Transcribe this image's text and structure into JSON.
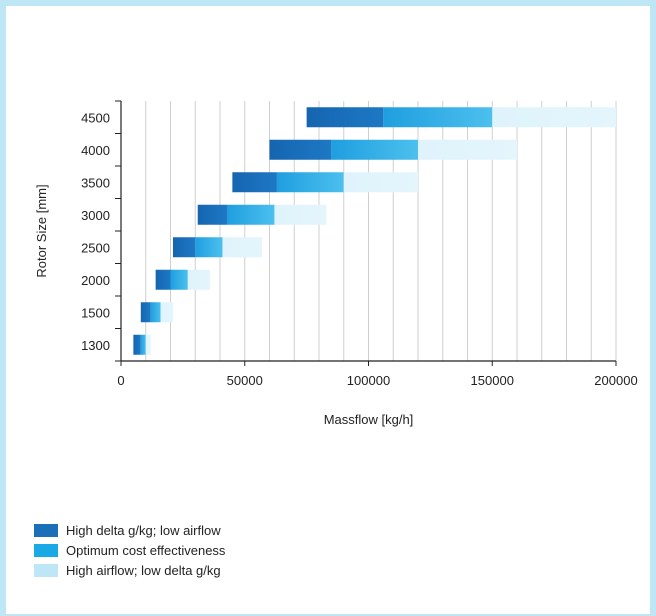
{
  "chart_data": {
    "type": "bar",
    "orientation": "horizontal-stacked",
    "xlabel": "Massflow [kg/h]",
    "ylabel": "Rotor Size [mm]",
    "xlim": [
      0,
      200000
    ],
    "xticks": [
      "0",
      "50000",
      "100000",
      "150000",
      "200000"
    ],
    "grid": "vertical",
    "legend_position": "bottom-left",
    "categories": [
      "1300",
      "1500",
      "2000",
      "2500",
      "3000",
      "3500",
      "4000",
      "4500"
    ],
    "series": [
      {
        "name": "High delta g/kg; low airflow",
        "color": "#1a6fb8",
        "ranges": [
          [
            5000,
            8000
          ],
          [
            8000,
            12000
          ],
          [
            14000,
            20000
          ],
          [
            21000,
            30000
          ],
          [
            31000,
            43000
          ],
          [
            45000,
            63000
          ],
          [
            60000,
            85000
          ],
          [
            75000,
            106000
          ]
        ]
      },
      {
        "name": "Optimum cost effectiveness",
        "color": "#2aaae2",
        "ranges": [
          [
            8000,
            10000
          ],
          [
            12000,
            16000
          ],
          [
            20000,
            27000
          ],
          [
            30000,
            41000
          ],
          [
            43000,
            62000
          ],
          [
            63000,
            90000
          ],
          [
            85000,
            120000
          ],
          [
            106000,
            150000
          ]
        ]
      },
      {
        "name": "High airflow; low delta g/kg",
        "color": "#c8ebf9",
        "ranges": [
          [
            10000,
            12000
          ],
          [
            16000,
            21000
          ],
          [
            27000,
            36000
          ],
          [
            41000,
            57000
          ],
          [
            62000,
            83000
          ],
          [
            90000,
            120000
          ],
          [
            120000,
            160000
          ],
          [
            150000,
            200000
          ]
        ]
      }
    ]
  }
}
